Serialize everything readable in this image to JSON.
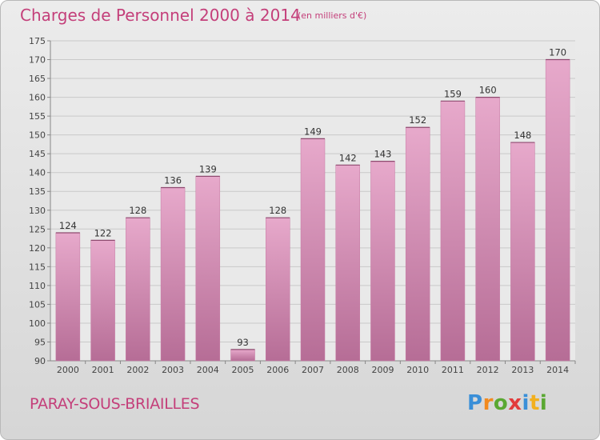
{
  "title": "Charges de Personnel 2000 à 2014",
  "subtitle": "(en milliers d'€)",
  "city": "PARAY-SOUS-BRIAILLES",
  "logo": {
    "letters": [
      "P",
      "r",
      "o",
      "x",
      "i",
      "t",
      "i"
    ],
    "colors": [
      "#3a8fd8",
      "#f28a1e",
      "#5aa832",
      "#e23b3b",
      "#3a8fd8",
      "#f2b01e",
      "#5aa832"
    ]
  },
  "colors": {
    "bar": "#d98ab5",
    "bar_dark": "#b66d96",
    "text": "#c43f7a",
    "grid": "#c9c9c9"
  },
  "chart_data": {
    "type": "bar",
    "categories": [
      "2000",
      "2001",
      "2002",
      "2003",
      "2004",
      "2005",
      "2006",
      "2007",
      "2008",
      "2009",
      "2010",
      "2011",
      "2012",
      "2013",
      "2014"
    ],
    "values": [
      124,
      122,
      128,
      136,
      139,
      93,
      128,
      149,
      142,
      143,
      152,
      159,
      160,
      148,
      170
    ],
    "data_labels": [
      "124",
      "122",
      "128",
      "136",
      "139",
      "93",
      "128",
      "149",
      "142",
      "143",
      "152",
      "159",
      "160",
      "148",
      "170"
    ],
    "yticks": [
      90,
      95,
      100,
      105,
      110,
      115,
      120,
      125,
      130,
      135,
      140,
      145,
      150,
      155,
      160,
      165,
      170,
      175
    ],
    "ylim": [
      90,
      175
    ],
    "grid": true,
    "legend": "none"
  }
}
